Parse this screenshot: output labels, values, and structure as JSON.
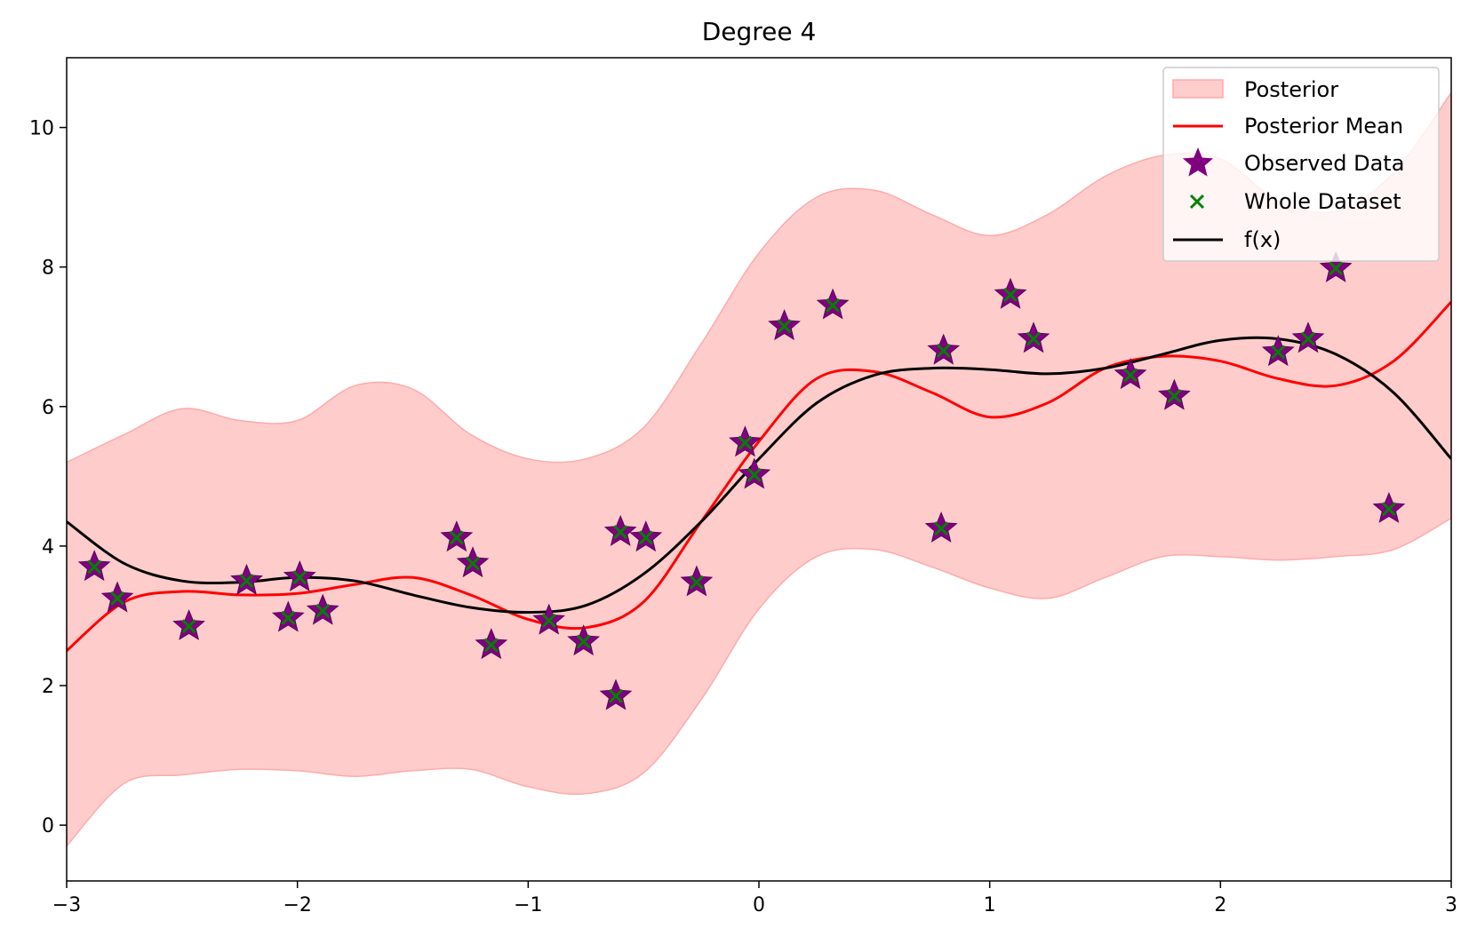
{
  "chart_data": {
    "type": "line",
    "title": "Degree 4",
    "xlabel": "",
    "ylabel": "",
    "xlim": [
      -3,
      3
    ],
    "ylim": [
      -0.8,
      11.0
    ],
    "xticks": [
      -3,
      -2,
      -1,
      0,
      1,
      2,
      3
    ],
    "xtick_labels": [
      "−3",
      "−2",
      "−1",
      "0",
      "1",
      "2",
      "3"
    ],
    "yticks": [
      0,
      2,
      4,
      6,
      8,
      10
    ],
    "ytick_labels": [
      "0",
      "2",
      "4",
      "6",
      "8",
      "10"
    ],
    "grid": false,
    "legend_position": "top-right",
    "series": [
      {
        "name": "Posterior",
        "kind": "band",
        "color": "#ffcccc",
        "edge_color": "#ffaaaa",
        "x": [
          -3.0,
          -2.75,
          -2.5,
          -2.25,
          -2.0,
          -1.75,
          -1.5,
          -1.25,
          -1.0,
          -0.75,
          -0.5,
          -0.25,
          0.0,
          0.25,
          0.5,
          0.75,
          1.0,
          1.25,
          1.5,
          1.75,
          2.0,
          2.25,
          2.5,
          2.75,
          3.0
        ],
        "lower": [
          -0.3,
          0.6,
          0.72,
          0.8,
          0.78,
          0.7,
          0.78,
          0.8,
          0.55,
          0.45,
          0.75,
          1.8,
          3.1,
          3.85,
          3.95,
          3.7,
          3.4,
          3.25,
          3.55,
          3.85,
          3.85,
          3.8,
          3.85,
          3.95,
          4.4
        ],
        "upper": [
          5.2,
          5.6,
          5.97,
          5.8,
          5.8,
          6.3,
          6.25,
          5.6,
          5.25,
          5.25,
          5.7,
          6.9,
          8.2,
          9.0,
          9.1,
          8.75,
          8.45,
          8.75,
          9.3,
          9.6,
          9.55,
          8.95,
          8.8,
          9.35,
          10.5
        ]
      },
      {
        "name": "Posterior Mean",
        "kind": "line",
        "color": "#ff0000",
        "x": [
          -3.0,
          -2.75,
          -2.5,
          -2.25,
          -2.0,
          -1.75,
          -1.5,
          -1.25,
          -1.0,
          -0.75,
          -0.5,
          -0.25,
          0.0,
          0.25,
          0.5,
          0.75,
          1.0,
          1.25,
          1.5,
          1.75,
          2.0,
          2.25,
          2.5,
          2.75,
          3.0
        ],
        "y": [
          2.5,
          3.2,
          3.35,
          3.3,
          3.32,
          3.45,
          3.55,
          3.3,
          2.95,
          2.83,
          3.2,
          4.35,
          5.5,
          6.4,
          6.5,
          6.2,
          5.85,
          6.05,
          6.55,
          6.72,
          6.65,
          6.4,
          6.3,
          6.65,
          7.5
        ]
      },
      {
        "name": "f(x)",
        "kind": "line",
        "color": "#000000",
        "x": [
          -3.0,
          -2.75,
          -2.5,
          -2.25,
          -2.0,
          -1.75,
          -1.5,
          -1.25,
          -1.0,
          -0.75,
          -0.5,
          -0.25,
          0.0,
          0.25,
          0.5,
          0.75,
          1.0,
          1.25,
          1.5,
          1.75,
          2.0,
          2.25,
          2.5,
          2.75,
          3.0
        ],
        "y": [
          4.35,
          3.75,
          3.5,
          3.48,
          3.55,
          3.5,
          3.3,
          3.12,
          3.05,
          3.15,
          3.6,
          4.35,
          5.25,
          6.05,
          6.45,
          6.55,
          6.53,
          6.47,
          6.55,
          6.75,
          6.95,
          6.97,
          6.75,
          6.2,
          5.25
        ]
      },
      {
        "name": "Observed Data",
        "kind": "star",
        "color": "#800080",
        "x": [
          -2.88,
          -2.78,
          -2.47,
          -2.22,
          -2.04,
          -1.99,
          -1.89,
          -1.31,
          -1.24,
          -1.16,
          -0.91,
          -0.76,
          -0.62,
          -0.6,
          -0.49,
          -0.27,
          -0.06,
          -0.02,
          0.11,
          0.32,
          0.79,
          0.8,
          1.09,
          1.19,
          1.61,
          1.8,
          2.25,
          2.38,
          2.5,
          2.73
        ],
        "y": [
          3.7,
          3.25,
          2.85,
          3.5,
          2.97,
          3.55,
          3.07,
          4.12,
          3.75,
          2.58,
          2.93,
          2.63,
          1.85,
          4.2,
          4.12,
          3.48,
          5.48,
          5.02,
          7.15,
          7.45,
          4.25,
          6.8,
          7.6,
          6.97,
          6.45,
          6.15,
          6.78,
          6.97,
          7.98,
          4.53
        ]
      },
      {
        "name": "Whole Dataset",
        "kind": "x",
        "color": "#008000",
        "x": [
          -2.88,
          -2.78,
          -2.47,
          -2.22,
          -2.04,
          -1.99,
          -1.89,
          -1.31,
          -1.24,
          -1.16,
          -0.91,
          -0.76,
          -0.62,
          -0.6,
          -0.49,
          -0.27,
          -0.06,
          -0.02,
          0.11,
          0.32,
          0.79,
          0.8,
          1.09,
          1.19,
          1.61,
          1.8,
          2.25,
          2.38,
          2.5,
          2.73
        ],
        "y": [
          3.7,
          3.25,
          2.85,
          3.5,
          2.97,
          3.55,
          3.07,
          4.12,
          3.75,
          2.58,
          2.93,
          2.63,
          1.85,
          4.2,
          4.12,
          3.48,
          5.48,
          5.02,
          7.15,
          7.45,
          4.25,
          6.8,
          7.6,
          6.97,
          6.45,
          6.15,
          6.78,
          6.97,
          7.98,
          4.53
        ]
      }
    ],
    "legend": [
      {
        "label": "Posterior",
        "swatch": "band"
      },
      {
        "label": "Posterior Mean",
        "swatch": "red-line"
      },
      {
        "label": "Observed Data",
        "swatch": "star"
      },
      {
        "label": "Whole Dataset",
        "swatch": "x"
      },
      {
        "label": "f(x)",
        "swatch": "black-line"
      }
    ]
  }
}
